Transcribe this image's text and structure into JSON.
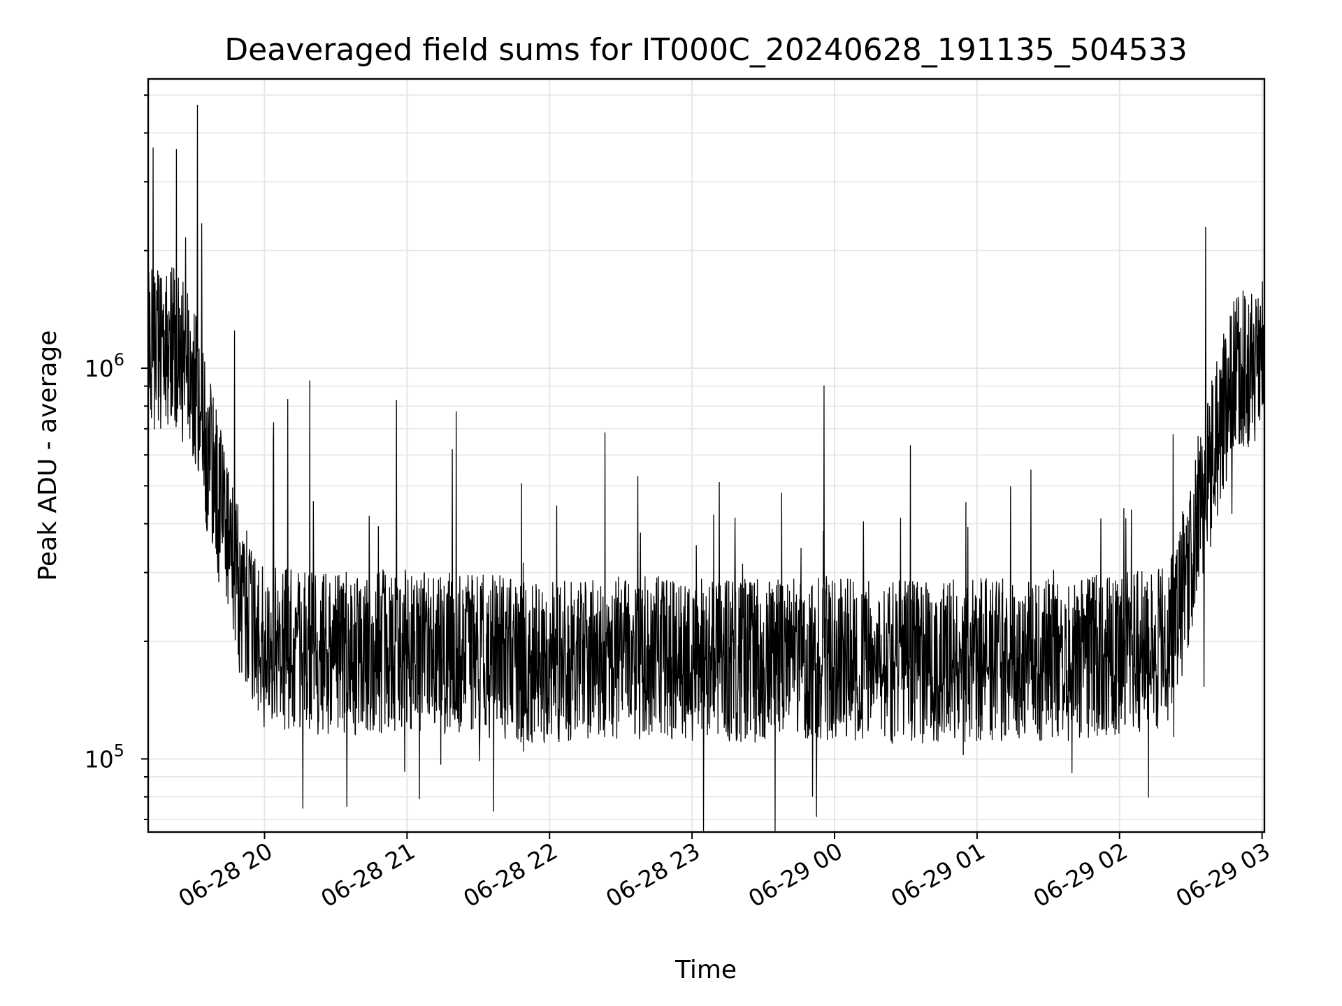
{
  "chart_data": {
    "type": "line",
    "title": "Deaveraged field sums for IT000C_20240628_191135_504533",
    "xlabel": "Time",
    "ylabel": "Peak ADU - average",
    "yscale": "log",
    "xlim": [
      "2024-06-28 19:11",
      "2024-06-29 03:01"
    ],
    "ylim": [
      65000,
      5500000
    ],
    "grid": true,
    "x_ticks": [
      {
        "value": "2024-06-28 20:00",
        "label": "06-28 20"
      },
      {
        "value": "2024-06-28 21:00",
        "label": "06-28 21"
      },
      {
        "value": "2024-06-28 22:00",
        "label": "06-28 22"
      },
      {
        "value": "2024-06-28 23:00",
        "label": "06-28 23"
      },
      {
        "value": "2024-06-29 00:00",
        "label": "06-29 00"
      },
      {
        "value": "2024-06-29 01:00",
        "label": "06-29 01"
      },
      {
        "value": "2024-06-29 02:00",
        "label": "06-29 02"
      },
      {
        "value": "2024-06-29 03:00",
        "label": "06-29 03"
      }
    ],
    "y_ticks": [
      {
        "value": 100000,
        "base": "10",
        "exp": "5"
      },
      {
        "value": 1000000,
        "base": "10",
        "exp": "6"
      }
    ],
    "series": [
      {
        "color": "#000000",
        "envelope_description": "dense noisy trace; local median of Peak ADU - average vs time",
        "x": [
          "2024-06-28 19:11",
          "2024-06-28 19:20",
          "2024-06-28 19:30",
          "2024-06-28 19:35",
          "2024-06-28 19:40",
          "2024-06-28 19:45",
          "2024-06-28 19:50",
          "2024-06-28 19:55",
          "2024-06-28 20:00",
          "2024-06-28 20:30",
          "2024-06-28 21:00",
          "2024-06-28 21:30",
          "2024-06-28 22:00",
          "2024-06-28 22:30",
          "2024-06-28 23:00",
          "2024-06-28 23:30",
          "2024-06-29 00:00",
          "2024-06-29 00:30",
          "2024-06-29 01:00",
          "2024-06-29 01:30",
          "2024-06-29 02:00",
          "2024-06-29 02:20",
          "2024-06-29 02:25",
          "2024-06-29 02:30",
          "2024-06-29 02:35",
          "2024-06-29 02:40",
          "2024-06-29 02:45",
          "2024-06-29 02:50",
          "2024-06-29 03:01"
        ],
        "y": [
          1100000,
          1150000,
          950000,
          650000,
          480000,
          340000,
          260000,
          215000,
          195000,
          185000,
          190000,
          185000,
          175000,
          182000,
          180000,
          178000,
          182000,
          176000,
          180000,
          178000,
          185000,
          195000,
          240000,
          340000,
          470000,
          620000,
          820000,
          980000,
          1050000
        ]
      }
    ]
  }
}
